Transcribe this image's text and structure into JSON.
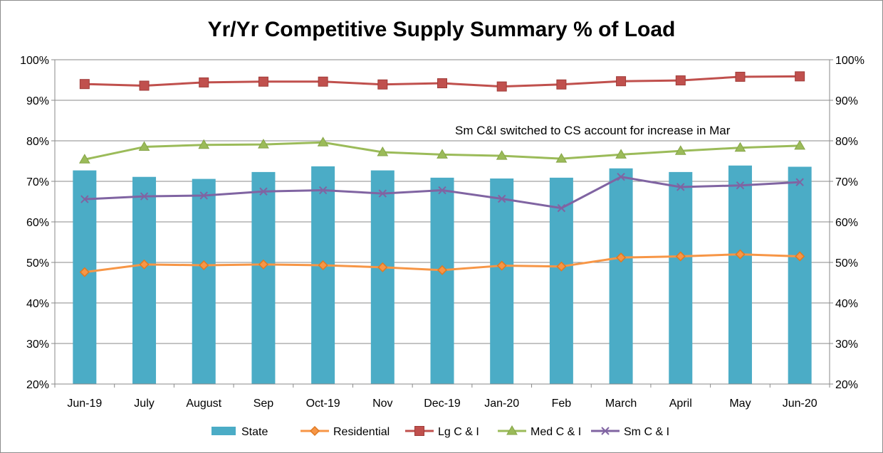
{
  "chart_data": {
    "type": "bar",
    "title": "Yr/Yr Competitive Supply Summary % of Load",
    "categories": [
      "Jun-19",
      "July",
      "August",
      "Sep",
      "Oct-19",
      "Nov",
      "Dec-19",
      "Jan-20",
      "Feb",
      "March",
      "April",
      "May",
      "Jun-20"
    ],
    "y_ticks": [
      "20%",
      "30%",
      "40%",
      "50%",
      "60%",
      "70%",
      "80%",
      "90%",
      "100%"
    ],
    "ylim": [
      20,
      100
    ],
    "y_unit": "%",
    "grid": true,
    "legend_position": "bottom",
    "annotation": "Sm C&I switched to CS account for increase in Mar",
    "series": [
      {
        "name": "State",
        "kind": "bar",
        "color": "#4bacc6",
        "values": [
          72.7,
          71.1,
          70.6,
          72.3,
          73.7,
          72.7,
          70.9,
          70.7,
          70.9,
          73.2,
          72.3,
          73.9,
          73.6
        ]
      },
      {
        "name": "Residential",
        "kind": "line",
        "marker": "diamond",
        "color": "#f79646",
        "values": [
          47.6,
          49.5,
          49.3,
          49.5,
          49.3,
          48.8,
          48.1,
          49.2,
          49.0,
          51.2,
          51.5,
          52.0,
          51.5
        ]
      },
      {
        "name": "Lg C & I",
        "kind": "line",
        "marker": "square",
        "color": "#c0504d",
        "values": [
          94.0,
          93.6,
          94.4,
          94.6,
          94.6,
          93.9,
          94.2,
          93.4,
          93.9,
          94.7,
          94.9,
          95.8,
          95.9
        ]
      },
      {
        "name": "Med C & I",
        "kind": "line",
        "marker": "triangle",
        "color": "#9bbb59",
        "values": [
          75.4,
          78.5,
          79.0,
          79.1,
          79.6,
          77.2,
          76.6,
          76.3,
          75.6,
          76.6,
          77.5,
          78.3,
          78.8
        ]
      },
      {
        "name": "Sm C & I",
        "kind": "line",
        "marker": "x",
        "color": "#8064a2",
        "values": [
          65.6,
          66.3,
          66.5,
          67.5,
          67.8,
          67.0,
          67.8,
          65.7,
          63.4,
          71.1,
          68.6,
          69.0,
          69.8
        ]
      }
    ]
  }
}
